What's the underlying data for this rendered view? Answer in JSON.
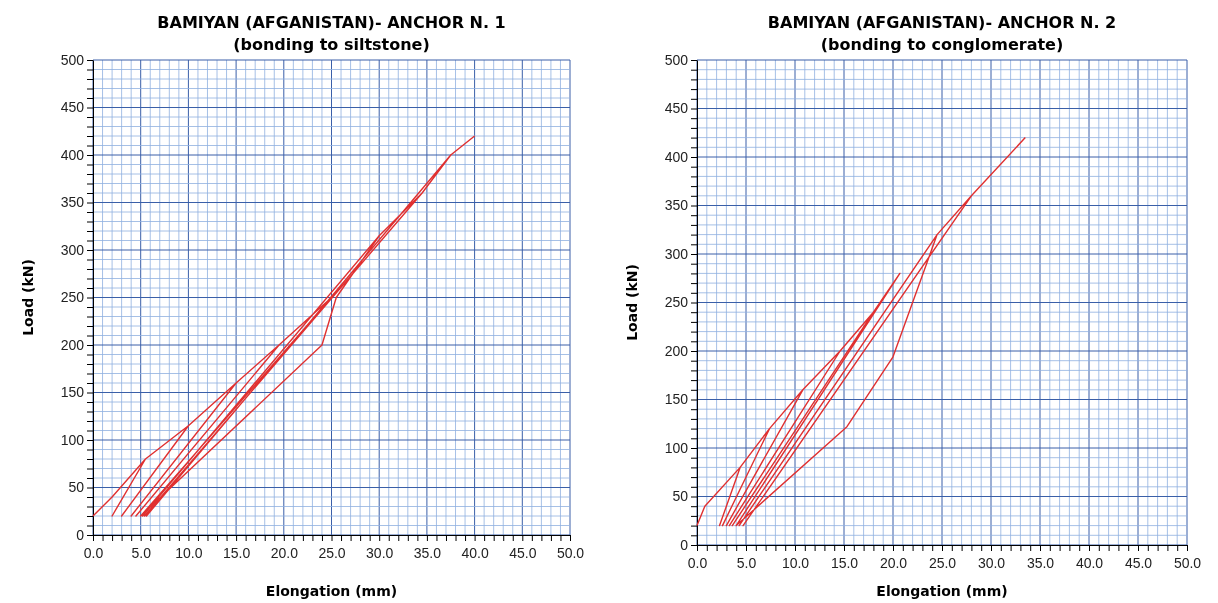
{
  "chart_data": [
    {
      "type": "line",
      "title": "BAMIYAN (AFGANISTAN)-  ANCHOR N. 1",
      "subtitle": "(bonding to siltstone)",
      "xlabel": "Elongation  (mm)",
      "ylabel": "Load  (kN)",
      "xlim": [
        0,
        50
      ],
      "ylim": [
        0,
        500
      ],
      "xticks": [
        {
          "value": 0,
          "label": "0.0"
        },
        {
          "value": 1,
          "label": null
        },
        {
          "value": 2,
          "label": null
        },
        {
          "value": 3,
          "label": null
        },
        {
          "value": 4,
          "label": null
        },
        {
          "value": 5,
          "label": "5.0"
        },
        {
          "value": 6,
          "label": null
        },
        {
          "value": 7,
          "label": null
        },
        {
          "value": 8,
          "label": null
        },
        {
          "value": 9,
          "label": null
        },
        {
          "value": 10,
          "label": "10.0"
        },
        {
          "value": 11,
          "label": null
        },
        {
          "value": 12,
          "label": null
        },
        {
          "value": 13,
          "label": null
        },
        {
          "value": 14,
          "label": null
        },
        {
          "value": 15,
          "label": "15.0"
        },
        {
          "value": 16,
          "label": null
        },
        {
          "value": 17,
          "label": null
        },
        {
          "value": 18,
          "label": null
        },
        {
          "value": 19,
          "label": null
        },
        {
          "value": 20,
          "label": "20.0"
        },
        {
          "value": 21,
          "label": null
        },
        {
          "value": 22,
          "label": null
        },
        {
          "value": 23,
          "label": null
        },
        {
          "value": 24,
          "label": null
        },
        {
          "value": 25,
          "label": "25.0"
        },
        {
          "value": 26,
          "label": null
        },
        {
          "value": 27,
          "label": null
        },
        {
          "value": 28,
          "label": null
        },
        {
          "value": 29,
          "label": null
        },
        {
          "value": 30,
          "label": "30.0"
        },
        {
          "value": 31,
          "label": null
        },
        {
          "value": 32,
          "label": null
        },
        {
          "value": 33,
          "label": null
        },
        {
          "value": 34,
          "label": null
        },
        {
          "value": 35,
          "label": "35.0"
        },
        {
          "value": 36,
          "label": null
        },
        {
          "value": 37,
          "label": null
        },
        {
          "value": 38,
          "label": null
        },
        {
          "value": 39,
          "label": null
        },
        {
          "value": 40,
          "label": "40.0"
        },
        {
          "value": 41,
          "label": null
        },
        {
          "value": 42,
          "label": null
        },
        {
          "value": 43,
          "label": null
        },
        {
          "value": 44,
          "label": null
        },
        {
          "value": 45,
          "label": "45.0"
        },
        {
          "value": 46,
          "label": null
        },
        {
          "value": 47,
          "label": null
        },
        {
          "value": 48,
          "label": null
        },
        {
          "value": 49,
          "label": null
        },
        {
          "value": 50,
          "label": "50.0"
        }
      ],
      "yticks": [
        0,
        {
          "value": 10,
          "label": null
        },
        {
          "value": 20,
          "label": null
        },
        {
          "value": 30,
          "label": null
        },
        {
          "value": 40,
          "label": null
        },
        50,
        {
          "value": 60,
          "label": null
        },
        {
          "value": 70,
          "label": null
        },
        {
          "value": 80,
          "label": null
        },
        {
          "value": 90,
          "label": null
        },
        100,
        {
          "value": 110,
          "label": null
        },
        {
          "value": 120,
          "label": null
        },
        {
          "value": 130,
          "label": null
        },
        {
          "value": 140,
          "label": null
        },
        150,
        {
          "value": 160,
          "label": null
        },
        {
          "value": 170,
          "label": null
        },
        {
          "value": 180,
          "label": null
        },
        {
          "value": 190,
          "label": null
        },
        200,
        {
          "value": 210,
          "label": null
        },
        {
          "value": 220,
          "label": null
        },
        {
          "value": 230,
          "label": null
        },
        {
          "value": 240,
          "label": null
        },
        250,
        {
          "value": 260,
          "label": null
        },
        {
          "value": 270,
          "label": null
        },
        {
          "value": 280,
          "label": null
        },
        {
          "value": 290,
          "label": null
        },
        300,
        {
          "value": 310,
          "label": null
        },
        {
          "value": 320,
          "label": null
        },
        {
          "value": 330,
          "label": null
        },
        {
          "value": 340,
          "label": null
        },
        350,
        {
          "value": 360,
          "label": null
        },
        {
          "value": 370,
          "label": null
        },
        {
          "value": 380,
          "label": null
        },
        {
          "value": 390,
          "label": null
        },
        400,
        {
          "value": 410,
          "label": null
        },
        {
          "value": 420,
          "label": null
        },
        {
          "value": 430,
          "label": null
        },
        {
          "value": 440,
          "label": null
        },
        450,
        {
          "value": 460,
          "label": null
        },
        {
          "value": 470,
          "label": null
        },
        {
          "value": 480,
          "label": null
        },
        {
          "value": 490,
          "label": null
        },
        500
      ],
      "grid": true,
      "line_style": "solid",
      "series": [
        {
          "color": "#e03030",
          "x": [
            0,
            2,
            5.5,
            2,
            5.5,
            10,
            3,
            10,
            15,
            4,
            15,
            19.5,
            4.5,
            19.5,
            25,
            5,
            24,
            25.5,
            30,
            5.2,
            30,
            34.5,
            5.4,
            34.5,
            37.5,
            5.6,
            37.5,
            40
          ],
          "values": [
            20,
            40,
            80,
            20,
            80,
            115,
            20,
            115,
            160,
            20,
            160,
            200,
            20,
            200,
            250,
            20,
            200,
            250,
            315,
            20,
            315,
            360,
            20,
            360,
            400,
            20,
            400,
            420
          ]
        }
      ]
    },
    {
      "type": "line",
      "title": "BAMIYAN (AFGANISTAN)-  ANCHOR N. 2",
      "subtitle": "(bonding to conglomerate)",
      "xlabel": "Elongation  (mm)",
      "ylabel": "Load  (kN)",
      "xlim": [
        0,
        50
      ],
      "ylim": [
        0,
        500
      ],
      "xticks": [
        {
          "value": 0,
          "label": "0.0"
        },
        {
          "value": 1,
          "label": null
        },
        {
          "value": 2,
          "label": null
        },
        {
          "value": 3,
          "label": null
        },
        {
          "value": 4,
          "label": null
        },
        {
          "value": 5,
          "label": "5.0"
        },
        {
          "value": 6,
          "label": null
        },
        {
          "value": 7,
          "label": null
        },
        {
          "value": 8,
          "label": null
        },
        {
          "value": 9,
          "label": null
        },
        {
          "value": 10,
          "label": "10.0"
        },
        {
          "value": 11,
          "label": null
        },
        {
          "value": 12,
          "label": null
        },
        {
          "value": 13,
          "label": null
        },
        {
          "value": 14,
          "label": null
        },
        {
          "value": 15,
          "label": "15.0"
        },
        {
          "value": 16,
          "label": null
        },
        {
          "value": 17,
          "label": null
        },
        {
          "value": 18,
          "label": null
        },
        {
          "value": 19,
          "label": null
        },
        {
          "value": 20,
          "label": "20.0"
        },
        {
          "value": 21,
          "label": null
        },
        {
          "value": 22,
          "label": null
        },
        {
          "value": 23,
          "label": null
        },
        {
          "value": 24,
          "label": null
        },
        {
          "value": 25,
          "label": "25.0"
        },
        {
          "value": 26,
          "label": null
        },
        {
          "value": 27,
          "label": null
        },
        {
          "value": 28,
          "label": null
        },
        {
          "value": 29,
          "label": null
        },
        {
          "value": 30,
          "label": "30.0"
        },
        {
          "value": 31,
          "label": null
        },
        {
          "value": 32,
          "label": null
        },
        {
          "value": 33,
          "label": null
        },
        {
          "value": 34,
          "label": null
        },
        {
          "value": 35,
          "label": "35.0"
        },
        {
          "value": 36,
          "label": null
        },
        {
          "value": 37,
          "label": null
        },
        {
          "value": 38,
          "label": null
        },
        {
          "value": 39,
          "label": null
        },
        {
          "value": 40,
          "label": "40.0"
        },
        {
          "value": 41,
          "label": null
        },
        {
          "value": 42,
          "label": null
        },
        {
          "value": 43,
          "label": null
        },
        {
          "value": 44,
          "label": null
        },
        {
          "value": 45,
          "label": "45.0"
        },
        {
          "value": 46,
          "label": null
        },
        {
          "value": 47,
          "label": null
        },
        {
          "value": 48,
          "label": null
        },
        {
          "value": 49,
          "label": null
        },
        {
          "value": 50,
          "label": "50.0"
        }
      ],
      "yticks": [
        0,
        {
          "value": 10,
          "label": null
        },
        {
          "value": 20,
          "label": null
        },
        {
          "value": 30,
          "label": null
        },
        {
          "value": 40,
          "label": null
        },
        50,
        {
          "value": 60,
          "label": null
        },
        {
          "value": 70,
          "label": null
        },
        {
          "value": 80,
          "label": null
        },
        {
          "value": 90,
          "label": null
        },
        100,
        {
          "value": 110,
          "label": null
        },
        {
          "value": 120,
          "label": null
        },
        {
          "value": 130,
          "label": null
        },
        {
          "value": 140,
          "label": null
        },
        150,
        {
          "value": 160,
          "label": null
        },
        {
          "value": 170,
          "label": null
        },
        {
          "value": 180,
          "label": null
        },
        {
          "value": 190,
          "label": null
        },
        200,
        {
          "value": 210,
          "label": null
        },
        {
          "value": 220,
          "label": null
        },
        {
          "value": 230,
          "label": null
        },
        {
          "value": 240,
          "label": null
        },
        250,
        {
          "value": 260,
          "label": null
        },
        {
          "value": 270,
          "label": null
        },
        {
          "value": 280,
          "label": null
        },
        {
          "value": 290,
          "label": null
        },
        300,
        {
          "value": 310,
          "label": null
        },
        {
          "value": 320,
          "label": null
        },
        {
          "value": 330,
          "label": null
        },
        {
          "value": 340,
          "label": null
        },
        350,
        {
          "value": 360,
          "label": null
        },
        {
          "value": 370,
          "label": null
        },
        {
          "value": 380,
          "label": null
        },
        {
          "value": 390,
          "label": null
        },
        400,
        {
          "value": 410,
          "label": null
        },
        {
          "value": 420,
          "label": null
        },
        {
          "value": 430,
          "label": null
        },
        {
          "value": 440,
          "label": null
        },
        450,
        {
          "value": 460,
          "label": null
        },
        {
          "value": 470,
          "label": null
        },
        {
          "value": 480,
          "label": null
        },
        {
          "value": 490,
          "label": null
        },
        500
      ],
      "grid": true,
      "line_style": "solid",
      "series": [
        {
          "color": "#e03030",
          "x": [
            0,
            0.8,
            4.4,
            2.3,
            4.4,
            7.4,
            2.6,
            7.4,
            10.8,
            3,
            10.8,
            14.6,
            3.3,
            14.6,
            18,
            3.6,
            18,
            20.7,
            4,
            15.3,
            20,
            24.5,
            4.3,
            24.5,
            28,
            4.7,
            28,
            33.5
          ],
          "values": [
            20,
            40,
            80,
            20,
            80,
            120,
            20,
            120,
            160,
            20,
            160,
            200,
            20,
            200,
            240,
            20,
            240,
            280,
            20,
            122,
            194,
            320,
            20,
            320,
            360,
            20,
            360,
            420
          ]
        }
      ]
    }
  ]
}
